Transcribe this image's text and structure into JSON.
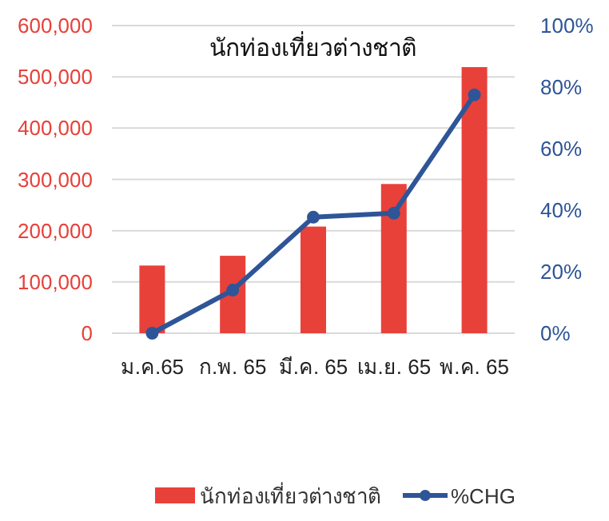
{
  "chart_data": {
    "type": "bar",
    "title": "นักท่องเที่ยวต่างชาติ",
    "categories": [
      "ม.ค.65",
      "ก.พ. 65",
      "มี.ค. 65",
      "เม.ย. 65",
      "พ.ค. 65"
    ],
    "series": [
      {
        "name": "นักท่องเที่ยวต่างชาติ",
        "color": "#e8413a",
        "values": [
          132000,
          151000,
          208000,
          291000,
          519000
        ]
      },
      {
        "name": "%CHG",
        "type": "line",
        "axis": "y2",
        "color": "#2e5597",
        "marker": "circle",
        "values": [
          0,
          14,
          37.7,
          39,
          77.5
        ]
      }
    ],
    "ylim": [
      0,
      600000
    ],
    "yticks": [
      {
        "value": 0,
        "label": "0"
      },
      {
        "value": 100000,
        "label": "100,000"
      },
      {
        "value": 200000,
        "label": "200,000"
      },
      {
        "value": 300000,
        "label": "300,000"
      },
      {
        "value": 400000,
        "label": "400,000"
      },
      {
        "value": 500000,
        "label": "500,000"
      },
      {
        "value": 600000,
        "label": "600,000"
      }
    ],
    "y2lim": [
      0,
      100
    ],
    "y2ticks": [
      {
        "value": 0,
        "label": "0%"
      },
      {
        "value": 20,
        "label": "20%"
      },
      {
        "value": 40,
        "label": "40%"
      },
      {
        "value": 60,
        "label": "60%"
      },
      {
        "value": 80,
        "label": "80%"
      },
      {
        "value": 100,
        "label": "100%"
      }
    ],
    "grid": "y",
    "legend": "bottom"
  }
}
